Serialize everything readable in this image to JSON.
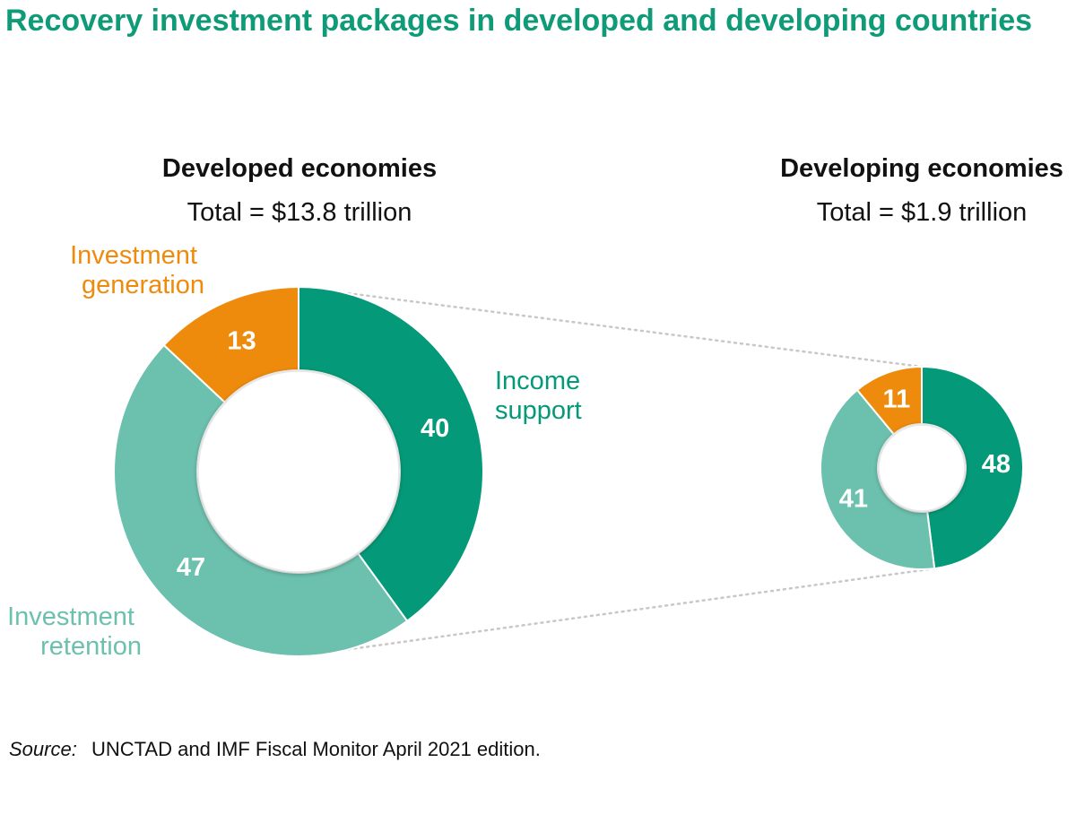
{
  "title": "Recovery investment packages in developed and developing countries",
  "source": {
    "label": "Source:",
    "text": "UNCTAD and IMF Fiscal Monitor April 2021 edition."
  },
  "colors": {
    "title": "#0f9a78",
    "income_support": "#049a79",
    "investment_retention": "#6cc1ae",
    "investment_generation": "#ef8b0c",
    "connector": "#c8c8c8"
  },
  "chart_data": [
    {
      "type": "pie",
      "donut": true,
      "title": "Developed economies",
      "subtitle": "Total = $13.8 trillion",
      "categories": [
        "Income support",
        "Investment retention",
        "Investment generation"
      ],
      "values": [
        40,
        47,
        13
      ],
      "category_labels": [
        {
          "line1": "Income",
          "line2": "support"
        },
        {
          "line1": "Investment",
          "line2": "retention"
        },
        {
          "line1": "Investment",
          "line2": "generation"
        }
      ]
    },
    {
      "type": "pie",
      "donut": true,
      "title": "Developing economies",
      "subtitle": "Total = $1.9 trillion",
      "categories": [
        "Income support",
        "Investment retention",
        "Investment generation"
      ],
      "values": [
        48,
        41,
        11
      ]
    }
  ]
}
